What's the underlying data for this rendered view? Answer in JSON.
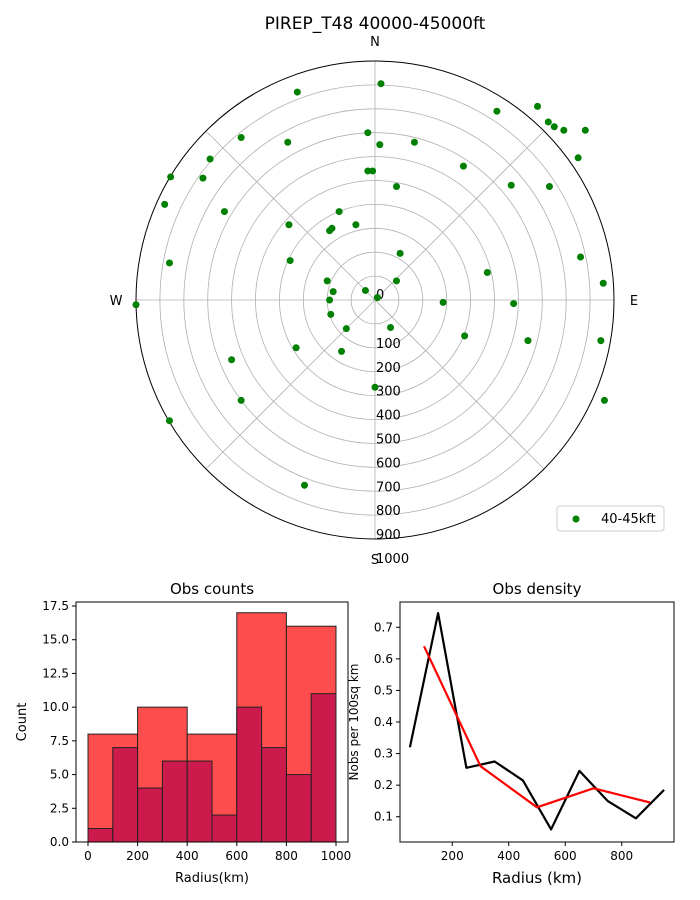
{
  "figure": {
    "title": "PIREP_T48 40000-45000ft"
  },
  "chart_data": [
    {
      "type": "scatter",
      "projection": "polar",
      "direction_labels": [
        "N",
        "E",
        "S",
        "W"
      ],
      "r_ticks": [
        0,
        100,
        200,
        300,
        400,
        500,
        600,
        700,
        800,
        900,
        1000
      ],
      "r_max": 1000,
      "grid": true,
      "legend": {
        "position": "bottom-right",
        "entries": [
          "40-45kft"
        ]
      },
      "series": [
        {
          "name": "40-45kft",
          "color": "#008000",
          "points_dx_dy": [
            [
              25,
              905
            ],
            [
              510,
              790
            ],
            [
              680,
              810
            ],
            [
              725,
              745
            ],
            [
              750,
              725
            ],
            [
              790,
              710
            ],
            [
              880,
              710
            ],
            [
              165,
              660
            ],
            [
              -325,
              870
            ],
            [
              -560,
              680
            ],
            [
              -690,
              590
            ],
            [
              -720,
              510
            ],
            [
              -855,
              515
            ],
            [
              -880,
              400
            ],
            [
              -630,
              370
            ],
            [
              -365,
              660
            ],
            [
              -30,
              700
            ],
            [
              20,
              650
            ],
            [
              -30,
              540
            ],
            [
              -10,
              540
            ],
            [
              850,
              595
            ],
            [
              570,
              480
            ],
            [
              730,
              475
            ],
            [
              370,
              560
            ],
            [
              90,
              475
            ],
            [
              -150,
              370
            ],
            [
              -80,
              315
            ],
            [
              -180,
              300
            ],
            [
              -360,
              315
            ],
            [
              -190,
              290
            ],
            [
              -355,
              165
            ],
            [
              -860,
              155
            ],
            [
              -200,
              80
            ],
            [
              -175,
              35
            ],
            [
              -40,
              40
            ],
            [
              10,
              10
            ],
            [
              90,
              80
            ],
            [
              105,
              195
            ],
            [
              -1000,
              -20
            ],
            [
              -190,
              0
            ],
            [
              -185,
              -60
            ],
            [
              -600,
              -250
            ],
            [
              860,
              180
            ],
            [
              955,
              70
            ],
            [
              470,
              115
            ],
            [
              580,
              -15
            ],
            [
              285,
              -10
            ],
            [
              -120,
              -120
            ],
            [
              -330,
              -200
            ],
            [
              -140,
              -215
            ],
            [
              65,
              -115
            ],
            [
              0,
              -365
            ],
            [
              640,
              -170
            ],
            [
              945,
              -170
            ],
            [
              375,
              -150
            ],
            [
              960,
              -420
            ],
            [
              -560,
              -420
            ],
            [
              -860,
              -505
            ],
            [
              -295,
              -775
            ]
          ]
        }
      ]
    },
    {
      "type": "bar",
      "title": "Obs counts",
      "xlabel": "Radius(km)",
      "ylabel": "Count",
      "xlim": [
        0,
        1000
      ],
      "ylim": [
        0,
        17.5
      ],
      "x_ticks": [
        0,
        200,
        400,
        600,
        800,
        1000
      ],
      "y_ticks": [
        0.0,
        2.5,
        5.0,
        7.5,
        10.0,
        12.5,
        15.0,
        17.5
      ],
      "bins_200": {
        "edges": [
          0,
          200,
          400,
          600,
          800,
          1000
        ],
        "values": [
          8,
          10,
          8,
          17,
          16
        ],
        "color": "#ff4d4d"
      },
      "bins_100": {
        "edges": [
          0,
          100,
          200,
          300,
          400,
          500,
          600,
          700,
          800,
          900,
          1000
        ],
        "values": [
          1,
          7,
          4,
          6,
          6,
          2,
          10,
          7,
          5,
          11
        ],
        "color": "#cc1a4d"
      }
    },
    {
      "type": "line",
      "title": "Obs density",
      "xlabel": "Radius (km)",
      "ylabel": "Nobs per 100sq km",
      "xlim": [
        15,
        985
      ],
      "ylim": [
        0.02,
        0.78
      ],
      "x_ticks": [
        200,
        400,
        600,
        800
      ],
      "y_ticks": [
        0.1,
        0.2,
        0.3,
        0.4,
        0.5,
        0.6,
        0.7
      ],
      "series": [
        {
          "color": "#000000",
          "x": [
            50,
            150,
            250,
            350,
            450,
            550,
            650,
            750,
            850,
            950
          ],
          "values": [
            0.32,
            0.745,
            0.255,
            0.275,
            0.215,
            0.06,
            0.245,
            0.15,
            0.095,
            0.185
          ]
        },
        {
          "color": "#ff0000",
          "x": [
            100,
            300,
            500,
            700,
            900
          ],
          "values": [
            0.64,
            0.26,
            0.13,
            0.19,
            0.145
          ]
        }
      ]
    }
  ]
}
